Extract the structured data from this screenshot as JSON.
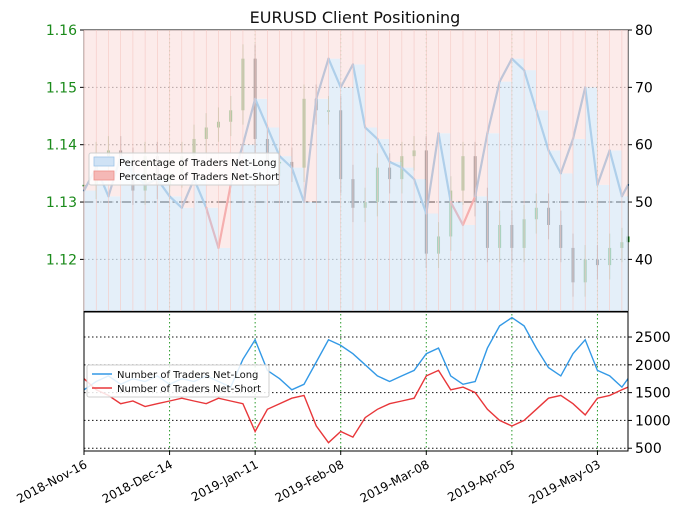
{
  "title": "EURUSD Client Positioning",
  "chart_data": [
    {
      "type": "line",
      "panel": "top",
      "title": "EURUSD Client Positioning",
      "x_dates": [
        "2018-11-16",
        "2018-11-20",
        "2018-11-24",
        "2018-11-28",
        "2018-12-02",
        "2018-12-06",
        "2018-12-10",
        "2018-12-14",
        "2018-12-18",
        "2018-12-22",
        "2018-12-26",
        "2018-12-30",
        "2019-01-03",
        "2019-01-07",
        "2019-01-11",
        "2019-01-15",
        "2019-01-19",
        "2019-01-23",
        "2019-01-27",
        "2019-01-31",
        "2019-02-04",
        "2019-02-08",
        "2019-02-12",
        "2019-02-16",
        "2019-02-20",
        "2019-02-24",
        "2019-02-28",
        "2019-03-04",
        "2019-03-08",
        "2019-03-12",
        "2019-03-16",
        "2019-03-20",
        "2019-03-24",
        "2019-03-28",
        "2019-04-01",
        "2019-04-05",
        "2019-04-09",
        "2019-04-13",
        "2019-04-17",
        "2019-04-21",
        "2019-04-25",
        "2019-04-29",
        "2019-05-03",
        "2019-05-07",
        "2019-05-11",
        "2019-05-13"
      ],
      "x_ticks": [
        "2018-Nov-16",
        "2018-Dec-14",
        "2019-Jan-11",
        "2019-Feb-08",
        "2019-Mar-08",
        "2019-Apr-05",
        "2019-May-03"
      ],
      "left_axis": {
        "ticks": [
          "1.12",
          "1.13",
          "1.14",
          "1.15",
          "1.16"
        ],
        "range": [
          1.111,
          1.16
        ],
        "color": "#1a8a1a"
      },
      "right_axis": {
        "ticks": [
          "40",
          "50",
          "60",
          "70",
          "80"
        ],
        "range": [
          31,
          80
        ]
      },
      "reference_line": {
        "value": 50,
        "style": "dash-dot"
      },
      "legend": {
        "position": "upper-left",
        "entries": [
          "Percentage of Traders Net-Long",
          "Percentage of Traders Net-Short"
        ]
      },
      "series": [
        {
          "name": "Percentage of Traders Net-Long",
          "color": "#2f7fc1",
          "values": [
            52,
            56,
            51,
            58,
            55,
            53,
            54,
            51,
            49,
            54,
            49,
            42,
            53,
            60,
            68,
            63,
            58,
            56,
            50,
            68,
            75,
            70,
            74,
            63,
            61,
            57,
            56,
            54,
            48,
            62,
            50,
            46,
            51,
            62,
            71,
            75,
            73,
            66,
            59,
            55,
            61,
            70,
            53,
            59,
            51,
            53
          ]
        },
        {
          "name": "Percentage of Traders Net-Short",
          "color": "#e8373a",
          "values": [
            48,
            44,
            49,
            42,
            45,
            47,
            46,
            49,
            51,
            46,
            51,
            58,
            47,
            40,
            32,
            37,
            42,
            44,
            50,
            32,
            25,
            30,
            26,
            37,
            39,
            43,
            44,
            46,
            52,
            38,
            50,
            54,
            49,
            38,
            29,
            25,
            27,
            34,
            41,
            45,
            39,
            30,
            47,
            41,
            49,
            47
          ]
        },
        {
          "name": "EURUSD",
          "color": "#1a8a1a",
          "values": [
            1.133,
            1.138,
            1.139,
            1.137,
            1.132,
            1.138,
            1.133,
            1.135,
            1.138,
            1.141,
            1.143,
            1.144,
            1.146,
            1.155,
            1.141,
            1.137,
            1.137,
            1.136,
            1.148,
            1.146,
            1.146,
            1.134,
            1.129,
            1.13,
            1.136,
            1.134,
            1.138,
            1.139,
            1.121,
            1.124,
            1.132,
            1.138,
            1.13,
            1.122,
            1.126,
            1.122,
            1.127,
            1.129,
            1.126,
            1.122,
            1.116,
            1.12,
            1.119,
            1.122,
            1.123,
            1.124
          ]
        }
      ]
    },
    {
      "type": "line",
      "panel": "bottom",
      "right_axis": {
        "ticks": [
          "500",
          "1000",
          "1500",
          "2000",
          "2500"
        ],
        "range": [
          450,
          2950
        ]
      },
      "legend": {
        "position": "left",
        "entries": [
          "Number of Traders Net-Long",
          "Number of Traders Net-Short"
        ]
      },
      "series": [
        {
          "name": "Number of Traders Net-Long",
          "color": "#3399e6",
          "values": [
            1550,
            1700,
            1800,
            1650,
            1750,
            1700,
            1800,
            1650,
            1750,
            1700,
            1800,
            1700,
            1600,
            2100,
            2450,
            1900,
            1750,
            1550,
            1650,
            2050,
            2450,
            2350,
            2200,
            2000,
            1800,
            1700,
            1800,
            1900,
            2200,
            2300,
            1800,
            1650,
            1700,
            2300,
            2700,
            2850,
            2700,
            2300,
            1950,
            1800,
            2200,
            2450,
            1900,
            1800,
            1600,
            1750
          ]
        },
        {
          "name": "Number of Traders Net-Short",
          "color": "#e8373a",
          "values": [
            1750,
            1550,
            1450,
            1300,
            1350,
            1250,
            1300,
            1350,
            1400,
            1350,
            1300,
            1400,
            1350,
            1300,
            800,
            1200,
            1300,
            1400,
            1450,
            900,
            600,
            800,
            700,
            1050,
            1200,
            1300,
            1350,
            1400,
            1800,
            1900,
            1550,
            1600,
            1500,
            1200,
            1000,
            900,
            1000,
            1200,
            1400,
            1450,
            1300,
            1100,
            1400,
            1450,
            1550,
            1600
          ]
        }
      ]
    }
  ]
}
